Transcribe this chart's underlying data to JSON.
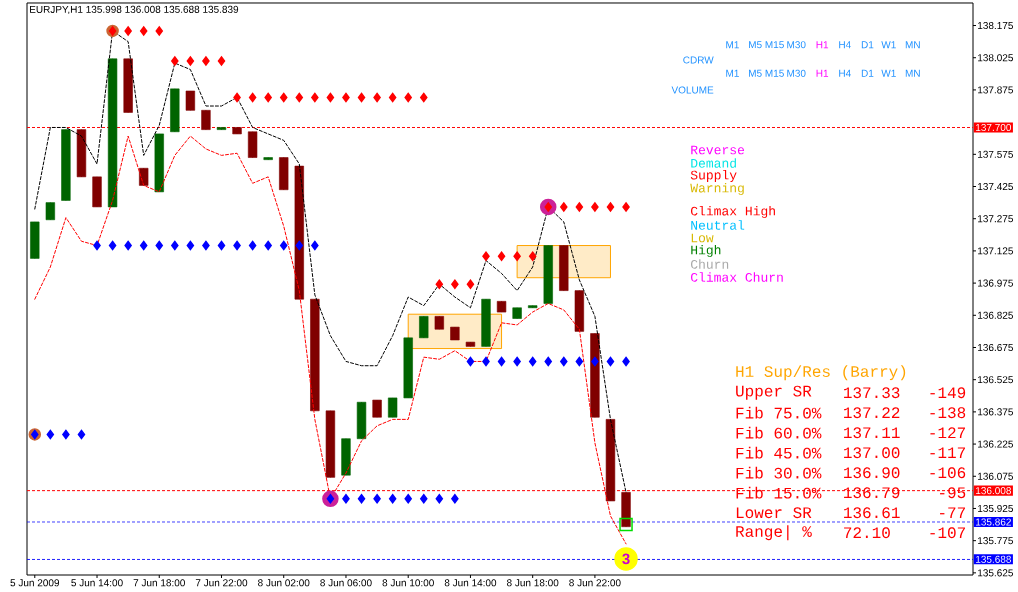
{
  "chart_data": {
    "type": "candlestick",
    "title": "EURJPY,H1 135.998 136.008 135.688 135.839",
    "categories": [
      "5 Jun 2009",
      null,
      null,
      null,
      "5 Jun 14:00",
      null,
      null,
      null,
      "7 Jun 18:00",
      null,
      null,
      null,
      "7 Jun 22:00",
      null,
      null,
      null,
      "8 Jun 02:00",
      null,
      null,
      null,
      "8 Jun 06:00",
      null,
      null,
      null,
      "8 Jun 10:00",
      null,
      null,
      null,
      "8 Jun 14:00",
      null,
      null,
      null,
      "8 Jun 18:00",
      null,
      null,
      null,
      "8 Jun 22:00",
      null,
      null
    ],
    "ohlc": [
      [
        137.09,
        137.26,
        137.09,
        137.26
      ],
      [
        137.27,
        137.35,
        137.27,
        137.35
      ],
      [
        137.36,
        137.69,
        137.36,
        137.69
      ],
      [
        137.69,
        137.69,
        137.47,
        137.47
      ],
      [
        137.47,
        137.47,
        137.33,
        137.33
      ],
      [
        137.33,
        138.02,
        137.33,
        138.02
      ],
      [
        138.02,
        138.02,
        137.77,
        137.77
      ],
      [
        137.51,
        137.51,
        137.43,
        137.43
      ],
      [
        137.4,
        137.67,
        137.4,
        137.67
      ],
      [
        137.68,
        137.88,
        137.68,
        137.88
      ],
      [
        137.87,
        137.87,
        137.78,
        137.78
      ],
      [
        137.78,
        137.78,
        137.69,
        137.69
      ],
      [
        137.69,
        137.7,
        137.69,
        137.7
      ],
      [
        137.7,
        137.7,
        137.67,
        137.67
      ],
      [
        137.68,
        137.68,
        137.56,
        137.56
      ],
      [
        137.55,
        137.56,
        137.55,
        137.56
      ],
      [
        137.56,
        137.56,
        137.41,
        137.41
      ],
      [
        137.52,
        137.52,
        136.9,
        136.9
      ],
      [
        136.9,
        136.9,
        136.38,
        136.38
      ],
      [
        136.38,
        136.38,
        136.07,
        136.07
      ],
      [
        136.08,
        136.25,
        136.08,
        136.25
      ],
      [
        136.25,
        136.42,
        136.25,
        136.42
      ],
      [
        136.43,
        136.43,
        136.35,
        136.35
      ],
      [
        136.35,
        136.44,
        136.35,
        136.44
      ],
      [
        136.44,
        136.72,
        136.44,
        136.72
      ],
      [
        136.72,
        136.82,
        136.72,
        136.82
      ],
      [
        136.82,
        136.82,
        136.76,
        136.76
      ],
      [
        136.77,
        136.77,
        136.71,
        136.71
      ],
      [
        136.7,
        136.7,
        136.68,
        136.68
      ],
      [
        136.68,
        136.9,
        136.68,
        136.9
      ],
      [
        136.89,
        136.89,
        136.84,
        136.84
      ],
      [
        136.81,
        136.86,
        136.81,
        136.86
      ],
      [
        136.86,
        136.87,
        136.86,
        136.87
      ],
      [
        136.88,
        137.15,
        136.88,
        137.15
      ],
      [
        137.15,
        137.15,
        136.94,
        136.94
      ],
      [
        136.94,
        136.94,
        136.75,
        136.75
      ],
      [
        136.74,
        136.74,
        136.35,
        136.35
      ],
      [
        136.34,
        136.34,
        135.96,
        135.96
      ],
      [
        136.0,
        136.0,
        135.84,
        135.84
      ]
    ],
    "colors": [
      "#006400",
      "#006400",
      "#006400",
      "#800000",
      "#800000",
      "#006400",
      "#800000",
      "#800000",
      "#006400",
      "#006400",
      "#800000",
      "#800000",
      "#006400",
      "#800000",
      "#800000",
      "#006400",
      "#800000",
      "#800000",
      "#800000",
      "#800000",
      "#006400",
      "#006400",
      "#800000",
      "#006400",
      "#006400",
      "#006400",
      "#800000",
      "#800000",
      "#800000",
      "#006400",
      "#800000",
      "#006400",
      "#006400",
      "#006400",
      "#800000",
      "#800000",
      "#800000",
      "#800000",
      "#800000"
    ],
    "series": [
      {
        "type": "line",
        "color": "#000000",
        "line_style": "dashed",
        "marker": "none",
        "values": [
          137.32,
          137.7,
          137.7,
          137.66,
          137.53,
          138.15,
          138.1,
          137.57,
          137.71,
          138.0,
          137.97,
          137.8,
          137.8,
          137.84,
          137.7,
          137.67,
          137.64,
          137.53,
          136.92,
          136.73,
          136.61,
          136.59,
          136.59,
          136.73,
          136.91,
          136.87,
          136.97,
          136.91,
          136.86,
          137.08,
          137.02,
          136.94,
          137.05,
          137.33,
          137.26,
          136.99,
          136.82,
          136.34,
          136.0
        ]
      },
      {
        "type": "line",
        "color": "#ff0000",
        "line_style": "dashed",
        "marker": "none",
        "values": [
          136.9,
          137.05,
          137.28,
          137.17,
          137.15,
          137.36,
          137.66,
          137.43,
          137.4,
          137.57,
          137.66,
          137.6,
          137.57,
          137.58,
          137.44,
          137.47,
          137.24,
          136.94,
          136.34,
          135.97,
          136.09,
          136.24,
          136.31,
          136.34,
          136.34,
          136.63,
          136.62,
          136.66,
          136.61,
          136.61,
          136.79,
          136.78,
          136.84,
          136.88,
          136.85,
          136.76,
          136.23,
          135.89,
          135.76
        ]
      },
      {
        "type": "line",
        "color": "#ffa500",
        "line_style": "solid",
        "marker": "none",
        "values": [
          null,
          null,
          null,
          null,
          null,
          null,
          null,
          null,
          null,
          null,
          null,
          null,
          null,
          null,
          null,
          null,
          null,
          null,
          null,
          null,
          null,
          null,
          null,
          null,
          null,
          null,
          null,
          null,
          null,
          null,
          null,
          null,
          null,
          null,
          null,
          null,
          null,
          null,
          null
        ],
        "lower": [
          null,
          null,
          null,
          null,
          null,
          null,
          null,
          null,
          null,
          null,
          null,
          null,
          null,
          null,
          null,
          null,
          null,
          null,
          null,
          null,
          null,
          null,
          null,
          null,
          136.67,
          136.67,
          136.67,
          136.67,
          136.67,
          136.67,
          136.67,
          null,
          null,
          null,
          null,
          null,
          null,
          null,
          null
        ],
        "upper": [
          null,
          null,
          null,
          null,
          null,
          null,
          null,
          null,
          null,
          null,
          null,
          null,
          null,
          null,
          null,
          null,
          null,
          null,
          null,
          null,
          null,
          null,
          null,
          null,
          136.83,
          136.83,
          136.83,
          136.83,
          136.83,
          136.83,
          136.83,
          null,
          null,
          null,
          null,
          null,
          null,
          null,
          null
        ]
      },
      {
        "type": "line",
        "color": "#ffa500",
        "line_style": "solid",
        "marker": "none",
        "values": [
          null,
          null,
          null,
          null,
          null,
          null,
          null,
          null,
          null,
          null,
          null,
          null,
          null,
          null,
          null,
          null,
          null,
          null,
          null,
          null,
          null,
          null,
          null,
          null,
          null,
          null,
          null,
          null,
          null,
          null,
          null,
          null,
          null,
          null,
          null,
          null,
          null,
          null,
          null
        ],
        "lower": [
          null,
          null,
          null,
          null,
          null,
          null,
          null,
          null,
          null,
          null,
          null,
          null,
          null,
          null,
          null,
          null,
          null,
          null,
          null,
          null,
          null,
          null,
          null,
          null,
          null,
          null,
          null,
          null,
          null,
          null,
          null,
          137.0,
          137.0,
          137.0,
          137.0,
          137.0,
          137.0,
          137.0,
          null
        ],
        "upper": [
          null,
          null,
          null,
          null,
          null,
          null,
          null,
          null,
          null,
          null,
          null,
          null,
          null,
          null,
          null,
          null,
          null,
          null,
          null,
          null,
          null,
          null,
          null,
          null,
          null,
          null,
          null,
          null,
          null,
          null,
          null,
          137.15,
          137.15,
          137.15,
          137.15,
          137.15,
          137.15,
          137.15,
          null
        ]
      },
      {
        "type": "scatter",
        "color": "#cc6633",
        "marker": "circle",
        "values": [
          136.27,
          null,
          null,
          null,
          null,
          138.15,
          null,
          null,
          null,
          null,
          null,
          null,
          null,
          null,
          null,
          null,
          null,
          null,
          null,
          null,
          null,
          null,
          null,
          null,
          null,
          null,
          null,
          null,
          null,
          null,
          null,
          null,
          null,
          null,
          null,
          null,
          null,
          null,
          null
        ]
      },
      {
        "type": "scatter",
        "color": "#cc2299",
        "marker": "circle",
        "values": [
          null,
          null,
          null,
          null,
          null,
          null,
          null,
          null,
          null,
          null,
          null,
          null,
          null,
          null,
          null,
          null,
          null,
          null,
          null,
          135.97,
          null,
          null,
          null,
          null,
          null,
          null,
          null,
          null,
          null,
          null,
          null,
          null,
          null,
          137.33,
          null,
          null,
          null,
          null,
          null
        ]
      },
      {
        "type": "scatter",
        "color": "#ffff00",
        "marker": "circle",
        "values": [
          null,
          null,
          null,
          null,
          null,
          null,
          null,
          null,
          null,
          null,
          null,
          null,
          null,
          null,
          null,
          null,
          null,
          null,
          null,
          null,
          null,
          null,
          null,
          null,
          null,
          null,
          null,
          null,
          null,
          null,
          null,
          null,
          null,
          null,
          null,
          null,
          null,
          null,
          135.69
        ]
      },
      {
        "type": "scatter",
        "color": "#ff0000",
        "marker": "diamond",
        "values": [
          null,
          null,
          null,
          null,
          null,
          138.15,
          138.15,
          138.15,
          138.15,
          138.01,
          138.01,
          138.01,
          138.01,
          137.84,
          137.84,
          137.84,
          137.84,
          137.84,
          137.84,
          137.84,
          137.84,
          137.84,
          137.84,
          137.84,
          137.84,
          137.84,
          136.97,
          136.97,
          136.97,
          137.1,
          137.1,
          137.1,
          137.1,
          137.33,
          137.33,
          137.33,
          137.33,
          137.33,
          137.33
        ]
      },
      {
        "type": "scatter",
        "color": "#0000ff",
        "marker": "diamond",
        "values": [
          136.27,
          136.27,
          136.27,
          136.27,
          137.15,
          137.15,
          137.15,
          137.15,
          137.15,
          137.15,
          137.15,
          137.15,
          137.15,
          137.15,
          137.15,
          137.15,
          137.15,
          137.15,
          137.15,
          135.97,
          135.97,
          135.97,
          135.97,
          135.97,
          135.97,
          135.97,
          135.97,
          135.97,
          136.61,
          136.61,
          136.61,
          136.61,
          136.61,
          136.61,
          136.61,
          136.61,
          136.61,
          136.61,
          136.61
        ]
      },
      {
        "type": "scatter",
        "color": "#00dd00",
        "marker": "square",
        "values": [
          null,
          null,
          null,
          null,
          null,
          null,
          null,
          null,
          null,
          null,
          null,
          null,
          null,
          null,
          null,
          null,
          null,
          null,
          null,
          null,
          null,
          null,
          null,
          null,
          null,
          null,
          null,
          null,
          null,
          null,
          null,
          null,
          null,
          null,
          null,
          null,
          null,
          null,
          135.85
        ]
      }
    ],
    "ylim": [
      135.615,
      138.28
    ],
    "yticks": [
      135.625,
      135.775,
      135.925,
      136.075,
      136.225,
      136.375,
      136.525,
      136.675,
      136.825,
      136.975,
      137.125,
      137.275,
      137.425,
      137.575,
      137.875,
      138.025,
      138.175
    ],
    "ref_lines": [
      {
        "axis": "y",
        "value": 137.7,
        "label": "137.700",
        "color": "#ff0000",
        "line_style": "dashed"
      },
      {
        "axis": "y",
        "value": 136.008,
        "label": "136.008",
        "color": "#ff0000",
        "line_style": "dashed"
      },
      {
        "axis": "y",
        "value": 135.862,
        "label": "135.862",
        "color": "#0000ff",
        "line_style": "dashed"
      },
      {
        "axis": "y",
        "value": 135.688,
        "label": "135.688",
        "color": "#0000ff",
        "line_style": "dashed"
      }
    ],
    "annotations": [
      "Reverse",
      "Demand",
      "Supply",
      "Warning",
      "Climax High",
      "Neutral",
      "Low",
      "High",
      "Churn",
      "Climax Churn",
      "M1",
      "M5",
      "M15",
      "M30",
      "H1",
      "H4",
      "D1",
      "W1",
      "MN",
      "CDRW",
      "M1",
      "M5",
      "M15",
      "M30",
      "H1",
      "H4",
      "D1",
      "W1",
      "MN",
      "VOLUME",
      "H1 Sup/Res (Barry)",
      "Upper SR",
      "137.33",
      "-149",
      "Fib 75.0%",
      "137.22",
      "-138",
      "Fib 60.0%",
      "137.11",
      "-127",
      "Fib 45.0%",
      "137.00",
      "-117",
      "Fib 30.0%",
      "136.90",
      "-106",
      "Fib 15.0%",
      "136.79",
      "-95",
      "Lower SR",
      "136.61",
      "-77",
      "Range| %",
      "72.10",
      "-107",
      {
        "text": "3",
        "y": 135.69
      }
    ]
  }
}
